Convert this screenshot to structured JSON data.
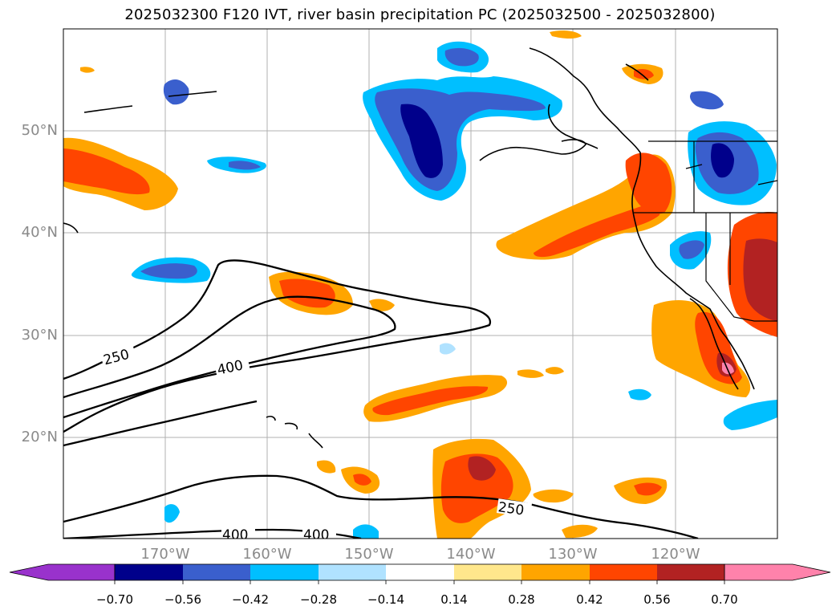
{
  "title": "2025032300 F120 IVT, river basin precipitation PC (2025032500 - 2025032800)",
  "axes": {
    "lat_labels": [
      "50°N",
      "40°N",
      "30°N",
      "20°N"
    ],
    "lon_labels": [
      "170°W",
      "160°W",
      "150°W",
      "140°W",
      "130°W",
      "120°W"
    ]
  },
  "contours": {
    "labels": [
      "250",
      "400",
      "250",
      "400",
      "400"
    ]
  },
  "colorbar": {
    "tick_labels": [
      "−0.70",
      "−0.56",
      "−0.42",
      "−0.28",
      "−0.14",
      "0.14",
      "0.28",
      "0.42",
      "0.56",
      "0.70"
    ],
    "colors": [
      "#9932cc",
      "#00008b",
      "#3a5fcd",
      "#00bfff",
      "#b0e2ff",
      "#ffffff",
      "#ffe78c",
      "#ffa500",
      "#ff4500",
      "#b22222",
      "#ff82ab"
    ]
  }
}
